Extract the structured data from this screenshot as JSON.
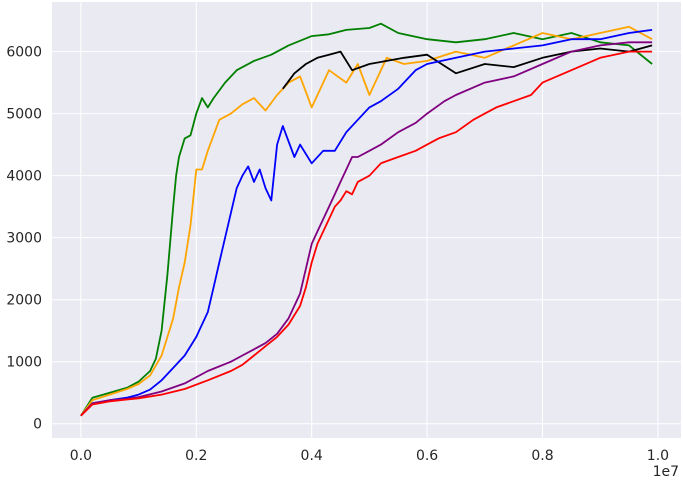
{
  "chart_data": {
    "type": "line",
    "title": "",
    "xlabel": "",
    "ylabel": "",
    "x_offset_label": "1e7",
    "xlim": [
      -0.05,
      1.04
    ],
    "ylim": [
      -230,
      6800
    ],
    "x_ticks": [
      0.0,
      0.2,
      0.4,
      0.6,
      0.8,
      1.0
    ],
    "x_tick_labels": [
      "0.0",
      "0.2",
      "0.4",
      "0.6",
      "0.8",
      "1.0"
    ],
    "y_ticks": [
      0,
      1000,
      2000,
      3000,
      4000,
      5000,
      6000
    ],
    "y_tick_labels": [
      "0",
      "1000",
      "2000",
      "3000",
      "4000",
      "5000",
      "6000"
    ],
    "grid": true,
    "legend": "none",
    "background_color": "#eaeaf2",
    "grid_color": "#ffffff",
    "series": [
      {
        "color": "#008000",
        "x": [
          0.0,
          0.02,
          0.05,
          0.08,
          0.1,
          0.12,
          0.13,
          0.14,
          0.15,
          0.16,
          0.165,
          0.17,
          0.18,
          0.19,
          0.2,
          0.21,
          0.22,
          0.23,
          0.25,
          0.27,
          0.3,
          0.33,
          0.36,
          0.4,
          0.43,
          0.46,
          0.5,
          0.52,
          0.55,
          0.6,
          0.65,
          0.7,
          0.75,
          0.8,
          0.85,
          0.9,
          0.95,
          0.99
        ],
        "y": [
          130,
          420,
          500,
          580,
          680,
          850,
          1050,
          1500,
          2400,
          3500,
          4000,
          4300,
          4600,
          4650,
          5000,
          5250,
          5100,
          5250,
          5500,
          5700,
          5850,
          5950,
          6100,
          6250,
          6280,
          6350,
          6380,
          6450,
          6300,
          6200,
          6150,
          6200,
          6300,
          6200,
          6300,
          6150,
          6100,
          5800
        ]
      },
      {
        "color": "#ffa500",
        "x": [
          0.0,
          0.02,
          0.05,
          0.08,
          0.1,
          0.12,
          0.14,
          0.16,
          0.17,
          0.18,
          0.19,
          0.2,
          0.21,
          0.22,
          0.24,
          0.26,
          0.28,
          0.3,
          0.32,
          0.34,
          0.36,
          0.38,
          0.4,
          0.43,
          0.46,
          0.48,
          0.5,
          0.53,
          0.56,
          0.6,
          0.65,
          0.7,
          0.75,
          0.8,
          0.85,
          0.9,
          0.95,
          0.99
        ],
        "y": [
          130,
          380,
          470,
          560,
          640,
          780,
          1100,
          1700,
          2200,
          2600,
          3200,
          4100,
          4100,
          4400,
          4900,
          5000,
          5150,
          5250,
          5050,
          5300,
          5500,
          5600,
          5100,
          5700,
          5500,
          5800,
          5300,
          5900,
          5800,
          5850,
          6000,
          5900,
          6100,
          6300,
          6200,
          6300,
          6400,
          6200
        ]
      },
      {
        "color": "#000000",
        "x": [
          0.35,
          0.37,
          0.39,
          0.41,
          0.43,
          0.45,
          0.47,
          0.5,
          0.53,
          0.56,
          0.6,
          0.65,
          0.7,
          0.75,
          0.8,
          0.85,
          0.9,
          0.95,
          0.99
        ],
        "y": [
          5400,
          5650,
          5800,
          5900,
          5950,
          6000,
          5700,
          5800,
          5850,
          5900,
          5950,
          5650,
          5800,
          5750,
          5900,
          6000,
          6050,
          6000,
          6100
        ]
      },
      {
        "color": "#0000ff",
        "x": [
          0.0,
          0.02,
          0.05,
          0.08,
          0.1,
          0.12,
          0.14,
          0.16,
          0.18,
          0.2,
          0.21,
          0.22,
          0.23,
          0.24,
          0.25,
          0.26,
          0.27,
          0.28,
          0.29,
          0.3,
          0.31,
          0.32,
          0.33,
          0.34,
          0.35,
          0.36,
          0.37,
          0.38,
          0.4,
          0.42,
          0.44,
          0.46,
          0.48,
          0.5,
          0.52,
          0.55,
          0.58,
          0.6,
          0.65,
          0.7,
          0.75,
          0.8,
          0.85,
          0.9,
          0.95,
          0.99
        ],
        "y": [
          130,
          330,
          380,
          420,
          470,
          550,
          700,
          900,
          1100,
          1400,
          1600,
          1800,
          2200,
          2600,
          3000,
          3400,
          3800,
          4000,
          4150,
          3900,
          4100,
          3800,
          3600,
          4500,
          4800,
          4550,
          4300,
          4500,
          4200,
          4400,
          4400,
          4700,
          4900,
          5100,
          5200,
          5400,
          5700,
          5800,
          5900,
          6000,
          6050,
          6100,
          6200,
          6200,
          6300,
          6350
        ]
      },
      {
        "color": "#800080",
        "x": [
          0.0,
          0.02,
          0.05,
          0.08,
          0.1,
          0.14,
          0.18,
          0.22,
          0.26,
          0.28,
          0.3,
          0.32,
          0.34,
          0.36,
          0.38,
          0.39,
          0.4,
          0.41,
          0.42,
          0.43,
          0.44,
          0.45,
          0.46,
          0.47,
          0.48,
          0.5,
          0.52,
          0.55,
          0.58,
          0.6,
          0.63,
          0.65,
          0.7,
          0.75,
          0.8,
          0.85,
          0.9,
          0.95,
          0.99
        ],
        "y": [
          130,
          330,
          380,
          400,
          430,
          520,
          650,
          850,
          1000,
          1100,
          1200,
          1300,
          1450,
          1700,
          2100,
          2500,
          2900,
          3100,
          3300,
          3500,
          3700,
          3900,
          4100,
          4300,
          4300,
          4400,
          4500,
          4700,
          4850,
          5000,
          5200,
          5300,
          5500,
          5600,
          5800,
          6000,
          6100,
          6150,
          6150
        ]
      },
      {
        "color": "#ff0000",
        "x": [
          0.0,
          0.02,
          0.05,
          0.08,
          0.1,
          0.14,
          0.18,
          0.22,
          0.26,
          0.28,
          0.3,
          0.32,
          0.34,
          0.36,
          0.38,
          0.39,
          0.4,
          0.41,
          0.42,
          0.43,
          0.44,
          0.45,
          0.46,
          0.47,
          0.48,
          0.5,
          0.52,
          0.55,
          0.58,
          0.6,
          0.62,
          0.65,
          0.68,
          0.7,
          0.72,
          0.75,
          0.78,
          0.8,
          0.85,
          0.9,
          0.95,
          0.99
        ],
        "y": [
          130,
          310,
          360,
          390,
          410,
          470,
          560,
          700,
          850,
          950,
          1100,
          1250,
          1400,
          1600,
          1900,
          2200,
          2600,
          2900,
          3100,
          3300,
          3500,
          3600,
          3750,
          3700,
          3900,
          4000,
          4200,
          4300,
          4400,
          4500,
          4600,
          4700,
          4900,
          5000,
          5100,
          5200,
          5300,
          5500,
          5700,
          5900,
          6000,
          6000
        ]
      }
    ]
  }
}
